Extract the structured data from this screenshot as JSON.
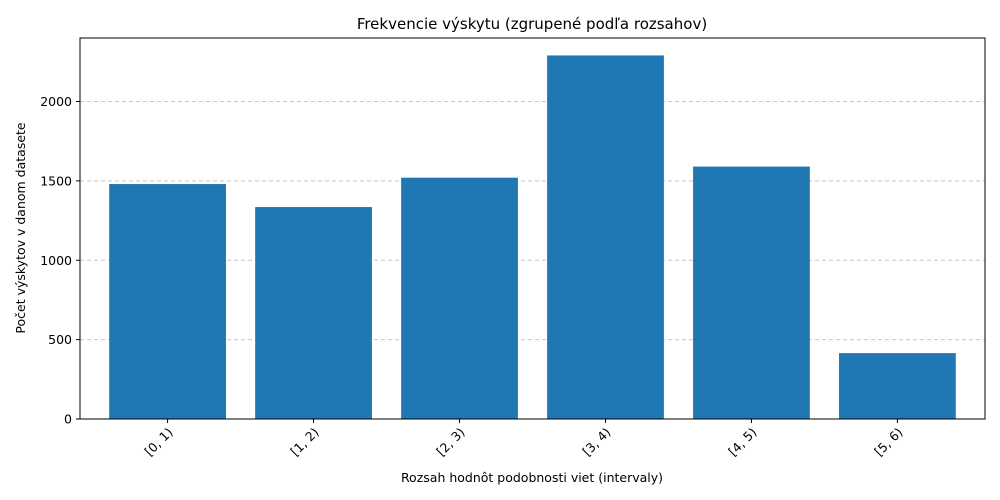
{
  "chart_data": {
    "type": "bar",
    "title": "Frekvencie výskytu (zgrupené podľa rozsahov)",
    "xlabel": "Rozsah hodnôt podobnosti viet (intervaly)",
    "ylabel": "Počet výskytov v danom datasete",
    "categories": [
      "[0, 1)",
      "[1, 2)",
      "[2, 3)",
      "[3, 4)",
      "[4, 5)",
      "[5, 6)"
    ],
    "values": [
      1480,
      1335,
      1520,
      2290,
      1590,
      415
    ],
    "ylim": [
      0,
      2400
    ],
    "yticks": [
      0,
      500,
      1000,
      1500,
      2000
    ],
    "grid": "y-dashed",
    "bar_color": "#1f77b4",
    "grid_color": "#c8c8c8",
    "x_tick_rotation": 45
  }
}
